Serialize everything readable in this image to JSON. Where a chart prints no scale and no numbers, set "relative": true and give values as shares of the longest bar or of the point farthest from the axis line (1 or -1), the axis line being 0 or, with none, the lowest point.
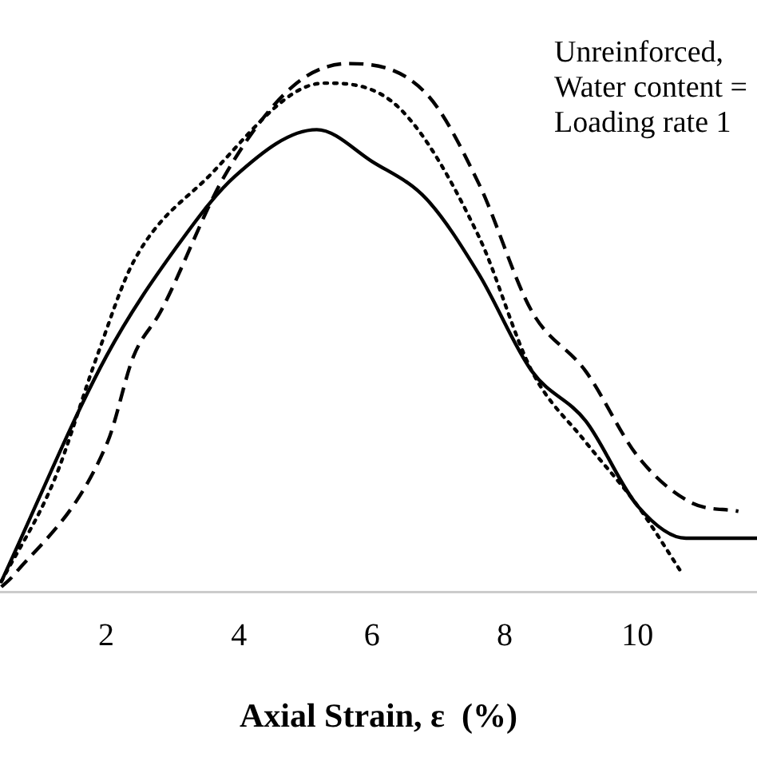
{
  "chart_data": {
    "type": "line",
    "relative": true,
    "xlabel": "Axial Strain, ε  (%)",
    "xlim": [
      0.4,
      11.8
    ],
    "xticks": [
      2,
      4,
      6,
      8,
      10
    ],
    "grid": false,
    "legend": false,
    "marker": "none",
    "annotations": [
      "Unreinforced,",
      "Water content =",
      "Loading rate 1"
    ],
    "series": [
      {
        "color": "#000000",
        "line_style": "solid",
        "x": [
          0.42,
          2.0,
          3.06,
          3.94,
          5.17,
          6.0,
          6.82,
          7.61,
          8.41,
          9.22,
          10.01,
          10.73,
          11.8
        ],
        "values": [
          0.02,
          0.446,
          0.653,
          0.787,
          0.875,
          0.815,
          0.744,
          0.602,
          0.418,
          0.324,
          0.162,
          0.102,
          0.102
        ]
      },
      {
        "color": "#000000",
        "line_style": "dashed",
        "x": [
          0.42,
          0.59,
          2.02,
          2.41,
          2.82,
          3.78,
          4.81,
          5.65,
          6.82,
          7.61,
          8.41,
          9.22,
          10.01,
          10.8,
          11.52
        ],
        "values": [
          0.01,
          0.03,
          0.284,
          0.446,
          0.531,
          0.787,
          0.957,
          1.0,
          0.943,
          0.773,
          0.531,
          0.418,
          0.256,
          0.17,
          0.153
        ]
      },
      {
        "color": "#000000",
        "line_style": "dotted",
        "x": [
          0.42,
          1.21,
          1.86,
          2.41,
          3.61,
          4.81,
          5.29,
          6.42,
          7.61,
          8.41,
          9.22,
          10.01,
          10.68
        ],
        "values": [
          0.02,
          0.21,
          0.446,
          0.625,
          0.795,
          0.943,
          0.963,
          0.915,
          0.673,
          0.418,
          0.284,
          0.162,
          0.034
        ]
      }
    ]
  }
}
